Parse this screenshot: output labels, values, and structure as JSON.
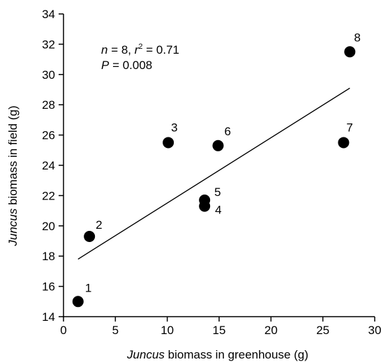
{
  "chart_data": {
    "type": "scatter",
    "xlabel_italic": "Juncus",
    "xlabel_rest": " biomass in greenhouse (g)",
    "ylabel_italic": "Juncus",
    "ylabel_rest": " biomass in field (g)",
    "xlim": [
      0,
      30
    ],
    "ylim": [
      14,
      34
    ],
    "xticks": [
      0,
      5,
      10,
      15,
      20,
      25,
      30
    ],
    "yticks": [
      14,
      16,
      18,
      20,
      22,
      24,
      26,
      28,
      30,
      32,
      34
    ],
    "grid": false,
    "points": [
      {
        "label": "1",
        "x": 1.4,
        "y": 15.0
      },
      {
        "label": "2",
        "x": 2.5,
        "y": 19.3
      },
      {
        "label": "3",
        "x": 10.1,
        "y": 25.5
      },
      {
        "label": "4",
        "x": 13.6,
        "y": 21.3
      },
      {
        "label": "5",
        "x": 13.6,
        "y": 21.7
      },
      {
        "label": "6",
        "x": 14.9,
        "y": 25.3
      },
      {
        "label": "7",
        "x": 27.0,
        "y": 25.5
      },
      {
        "label": "8",
        "x": 27.6,
        "y": 31.5
      }
    ],
    "regression_line": {
      "x": [
        1.4,
        27.6
      ],
      "y": [
        17.8,
        29.1
      ]
    },
    "stats": {
      "n_symbol": "n",
      "n_value": " = 8, ",
      "r_symbol": "r",
      "r_exponent": "2",
      "r_value": " = 0.71",
      "p_symbol": "P",
      "p_value": " = 0.008"
    }
  }
}
